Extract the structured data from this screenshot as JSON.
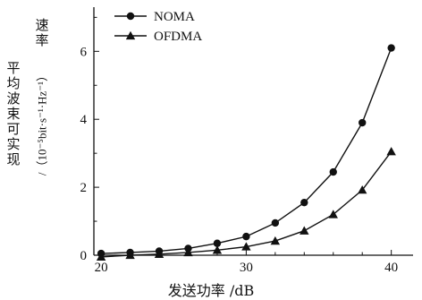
{
  "chart_data": {
    "type": "line",
    "title": "",
    "xlabel": "发送功率 /dB",
    "ylabel_line1": "平均波束可实现",
    "ylabel_line2_cjk": "速率",
    "ylabel_line2_unit": "/（10⁻⁵bit·s⁻¹·Hz⁻¹）",
    "xlim": [
      19.5,
      41.5
    ],
    "ylim": [
      0,
      7.3
    ],
    "x_ticks": [
      20,
      30,
      40
    ],
    "y_ticks": [
      0,
      2,
      4,
      6
    ],
    "legend_position": "top-left",
    "grid": false,
    "x": [
      20,
      22,
      24,
      26,
      28,
      30,
      32,
      34,
      36,
      38,
      40
    ],
    "series": [
      {
        "name": "NOMA",
        "marker": "circle",
        "values": [
          0.05,
          0.08,
          0.12,
          0.2,
          0.35,
          0.55,
          0.95,
          1.55,
          2.45,
          3.9,
          6.1
        ]
      },
      {
        "name": "OFDMA",
        "marker": "triangle",
        "values": [
          -0.05,
          0.0,
          0.03,
          0.08,
          0.15,
          0.25,
          0.42,
          0.72,
          1.2,
          1.92,
          3.05
        ]
      }
    ]
  }
}
